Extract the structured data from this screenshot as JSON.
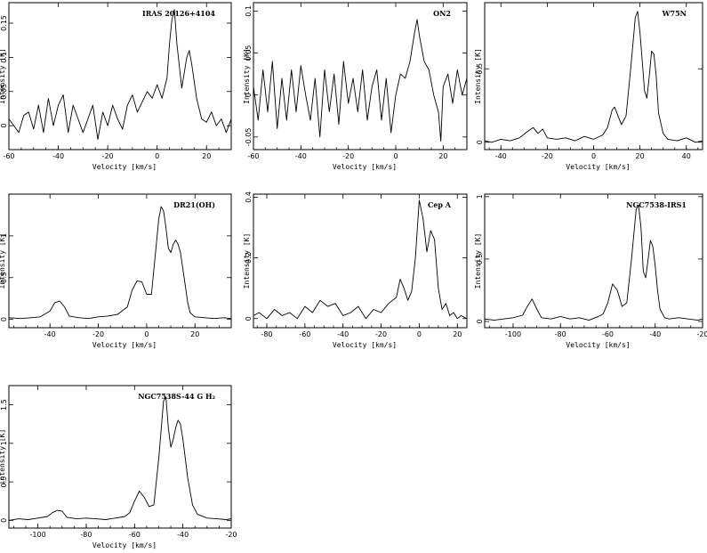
{
  "chart_data": [
    {
      "type": "line",
      "title": "IRAS 20126+4104",
      "xlabel": "Velocity  [km/s]",
      "ylabel": "Intensity [K]",
      "xlim": [
        -60,
        30
      ],
      "ylim": [
        -0.035,
        0.18
      ],
      "xticks": [
        -60,
        -40,
        -20,
        0,
        20
      ],
      "yticks": [
        0,
        0.05,
        0.1,
        0.15
      ],
      "ytick_labels": [
        "0",
        "0.05",
        "0.1",
        "0.15"
      ],
      "x": [
        -60,
        -58,
        -56,
        -54,
        -52,
        -50,
        -48,
        -46,
        -44,
        -42,
        -40,
        -38,
        -36,
        -34,
        -32,
        -30,
        -28,
        -26,
        -24,
        -22,
        -20,
        -18,
        -16,
        -14,
        -12,
        -10,
        -8,
        -6,
        -4,
        -2,
        0,
        2,
        4,
        5,
        6,
        7,
        8,
        10,
        12,
        13,
        14,
        16,
        18,
        20,
        22,
        24,
        26,
        28,
        30
      ],
      "y": [
        0.01,
        0.0,
        -0.01,
        0.015,
        0.02,
        -0.005,
        0.03,
        -0.01,
        0.04,
        0.0,
        0.03,
        0.045,
        -0.01,
        0.03,
        0.01,
        -0.01,
        0.01,
        0.03,
        -0.02,
        0.02,
        0.0,
        0.03,
        0.01,
        -0.005,
        0.03,
        0.045,
        0.02,
        0.035,
        0.05,
        0.04,
        0.06,
        0.04,
        0.07,
        0.12,
        0.155,
        0.17,
        0.12,
        0.055,
        0.1,
        0.11,
        0.09,
        0.04,
        0.01,
        0.005,
        0.02,
        0.0,
        0.01,
        -0.01,
        0.01
      ]
    },
    {
      "type": "line",
      "title": "ON2",
      "xlabel": "Velocity  [km/s]",
      "ylabel": "Intensity [K]",
      "xlim": [
        -60,
        30
      ],
      "ylim": [
        -0.065,
        0.11
      ],
      "xticks": [
        -60,
        -40,
        -20,
        0,
        20
      ],
      "yticks": [
        -0.05,
        0,
        0.05,
        0.1
      ],
      "ytick_labels": [
        "-0.05",
        "0",
        "0.05",
        "0.1"
      ],
      "x": [
        -60,
        -58,
        -56,
        -54,
        -52,
        -50,
        -48,
        -46,
        -44,
        -42,
        -40,
        -38,
        -36,
        -34,
        -32,
        -30,
        -28,
        -26,
        -24,
        -22,
        -20,
        -18,
        -16,
        -14,
        -12,
        -10,
        -8,
        -6,
        -4,
        -2,
        0,
        2,
        4,
        6,
        8,
        9,
        10,
        12,
        14,
        16,
        18,
        19,
        20,
        22,
        24,
        26,
        28,
        30
      ],
      "y": [
        0.01,
        -0.03,
        0.03,
        -0.02,
        0.04,
        -0.04,
        0.02,
        -0.03,
        0.03,
        -0.02,
        0.035,
        0.0,
        -0.03,
        0.02,
        -0.05,
        0.03,
        -0.02,
        0.025,
        -0.035,
        0.04,
        -0.01,
        0.02,
        -0.02,
        0.03,
        -0.03,
        0.01,
        0.03,
        -0.03,
        0.02,
        -0.045,
        0.0,
        0.025,
        0.02,
        0.04,
        0.075,
        0.09,
        0.07,
        0.04,
        0.03,
        0.0,
        -0.02,
        -0.055,
        0.01,
        0.025,
        -0.01,
        0.03,
        0.0,
        0.02
      ]
    },
    {
      "type": "line",
      "title": "W75N",
      "xlabel": "Velocity  [km/s]",
      "ylabel": "Intensity [K]",
      "xlim": [
        -47,
        47
      ],
      "ylim": [
        -0.05,
        0.95
      ],
      "xticks": [
        -40,
        -20,
        0,
        20,
        40
      ],
      "yticks": [
        0,
        0.5
      ],
      "ytick_labels": [
        "0",
        "0.5"
      ],
      "x": [
        -47,
        -44,
        -40,
        -36,
        -32,
        -28,
        -26,
        -24,
        -22,
        -20,
        -16,
        -12,
        -8,
        -4,
        0,
        4,
        6,
        8,
        9,
        10,
        12,
        14,
        16,
        18,
        19,
        20,
        22,
        23,
        24,
        25,
        26,
        27,
        28,
        30,
        32,
        36,
        40,
        44,
        47
      ],
      "y": [
        0.01,
        0.0,
        0.02,
        0.01,
        0.03,
        0.08,
        0.1,
        0.06,
        0.09,
        0.03,
        0.02,
        0.03,
        0.01,
        0.04,
        0.02,
        0.05,
        0.1,
        0.22,
        0.24,
        0.2,
        0.12,
        0.18,
        0.5,
        0.85,
        0.89,
        0.75,
        0.35,
        0.3,
        0.45,
        0.62,
        0.6,
        0.45,
        0.2,
        0.06,
        0.02,
        0.01,
        0.03,
        0.0,
        0.01
      ]
    },
    {
      "type": "line",
      "title": "DR21(OH)",
      "xlabel": "Velocity  [km/s]",
      "ylabel": "Intensity [K]",
      "xlim": [
        -57,
        35
      ],
      "ylim": [
        -0.1,
        1.5
      ],
      "xticks": [
        -40,
        -20,
        0,
        20
      ],
      "yticks": [
        0,
        0.5,
        1
      ],
      "ytick_labels": [
        "0",
        "0.5",
        "1"
      ],
      "x": [
        -57,
        -52,
        -48,
        -44,
        -40,
        -38,
        -36,
        -34,
        -32,
        -28,
        -24,
        -20,
        -16,
        -12,
        -8,
        -6,
        -4,
        -2,
        0,
        2,
        4,
        5,
        6,
        7,
        8,
        9,
        10,
        11,
        12,
        13,
        14,
        15,
        16,
        17,
        18,
        20,
        24,
        28,
        32,
        35
      ],
      "y": [
        0.02,
        0.01,
        0.02,
        0.03,
        0.1,
        0.2,
        0.22,
        0.15,
        0.04,
        0.02,
        0.01,
        0.03,
        0.04,
        0.06,
        0.15,
        0.35,
        0.46,
        0.45,
        0.3,
        0.3,
        0.9,
        1.2,
        1.35,
        1.3,
        1.1,
        0.85,
        0.8,
        0.9,
        0.95,
        0.9,
        0.8,
        0.6,
        0.4,
        0.2,
        0.08,
        0.03,
        0.02,
        0.01,
        0.02,
        0.01
      ]
    },
    {
      "type": "line",
      "title": "Cep A",
      "xlabel": "Velocity  [km/s]",
      "ylabel": "Intensity [K]",
      "xlim": [
        -87,
        25
      ],
      "ylim": [
        -0.03,
        0.41
      ],
      "xticks": [
        -80,
        -60,
        -40,
        -20,
        0,
        20
      ],
      "yticks": [
        0,
        0.2,
        0.4
      ],
      "ytick_labels": [
        "0",
        "0.2",
        "0.4"
      ],
      "x": [
        -87,
        -84,
        -80,
        -76,
        -72,
        -68,
        -64,
        -60,
        -56,
        -52,
        -48,
        -44,
        -40,
        -36,
        -32,
        -28,
        -24,
        -20,
        -16,
        -12,
        -10,
        -8,
        -6,
        -4,
        -2,
        0,
        2,
        4,
        6,
        8,
        10,
        12,
        14,
        16,
        18,
        20,
        22,
        25
      ],
      "y": [
        0.01,
        0.02,
        0.0,
        0.03,
        0.01,
        0.02,
        0.0,
        0.04,
        0.02,
        0.06,
        0.04,
        0.05,
        0.01,
        0.02,
        0.04,
        0.0,
        0.03,
        0.02,
        0.05,
        0.07,
        0.13,
        0.1,
        0.06,
        0.09,
        0.2,
        0.39,
        0.33,
        0.22,
        0.29,
        0.26,
        0.1,
        0.03,
        0.05,
        0.01,
        0.02,
        0.0,
        0.01,
        0.0
      ]
    },
    {
      "type": "line",
      "title": "NGC7538-IRS1",
      "xlabel": "Velocity  [km/s]",
      "ylabel": "Intensity [K]",
      "xlim": [
        -112,
        -20
      ],
      "ylim": [
        -0.05,
        1.02
      ],
      "xticks": [
        -100,
        -80,
        -60,
        -40,
        -20
      ],
      "yticks": [
        0,
        0.5,
        1
      ],
      "ytick_labels": [
        "0",
        "0.5",
        "1"
      ],
      "x": [
        -112,
        -108,
        -104,
        -100,
        -96,
        -94,
        -92,
        -90,
        -88,
        -84,
        -80,
        -76,
        -72,
        -68,
        -64,
        -62,
        -60,
        -58,
        -56,
        -54,
        -52,
        -50,
        -48,
        -47,
        -46,
        -45,
        -44,
        -43,
        -42,
        -41,
        -40,
        -39,
        -38,
        -36,
        -34,
        -30,
        -26,
        -22,
        -20
      ],
      "y": [
        0.02,
        0.01,
        0.02,
        0.03,
        0.05,
        0.12,
        0.18,
        0.1,
        0.03,
        0.02,
        0.04,
        0.02,
        0.03,
        0.01,
        0.04,
        0.06,
        0.15,
        0.3,
        0.25,
        0.12,
        0.15,
        0.5,
        0.9,
        0.93,
        0.75,
        0.4,
        0.35,
        0.5,
        0.65,
        0.6,
        0.45,
        0.25,
        0.1,
        0.03,
        0.02,
        0.03,
        0.02,
        0.01,
        0.02
      ]
    },
    {
      "type": "line",
      "title": "NGC7538S-44 G H₂",
      "xlabel": "Velocity  [km/s]",
      "ylabel": "Intensity [K]",
      "xlim": [
        -112,
        -20
      ],
      "ylim": [
        -0.1,
        1.75
      ],
      "xticks": [
        -100,
        -80,
        -60,
        -40,
        -20
      ],
      "yticks": [
        0,
        0.5,
        1,
        1.5
      ],
      "ytick_labels": [
        "0",
        "0.5",
        "1",
        "1.5"
      ],
      "x": [
        -112,
        -108,
        -104,
        -100,
        -96,
        -94,
        -92,
        -90,
        -88,
        -84,
        -80,
        -76,
        -72,
        -68,
        -64,
        -62,
        -60,
        -58,
        -56,
        -54,
        -52,
        -50,
        -48,
        -47,
        -46,
        -45,
        -44,
        -43,
        -42,
        -41,
        -40,
        -38,
        -36,
        -34,
        -30,
        -26,
        -22,
        -20
      ],
      "y": [
        0.0,
        0.02,
        0.01,
        0.03,
        0.05,
        0.1,
        0.13,
        0.12,
        0.04,
        0.02,
        0.03,
        0.02,
        0.01,
        0.03,
        0.05,
        0.1,
        0.25,
        0.38,
        0.3,
        0.18,
        0.2,
        0.8,
        1.55,
        1.6,
        1.2,
        0.95,
        1.05,
        1.2,
        1.3,
        1.25,
        1.05,
        0.55,
        0.2,
        0.08,
        0.03,
        0.02,
        0.01,
        0.02
      ]
    }
  ]
}
